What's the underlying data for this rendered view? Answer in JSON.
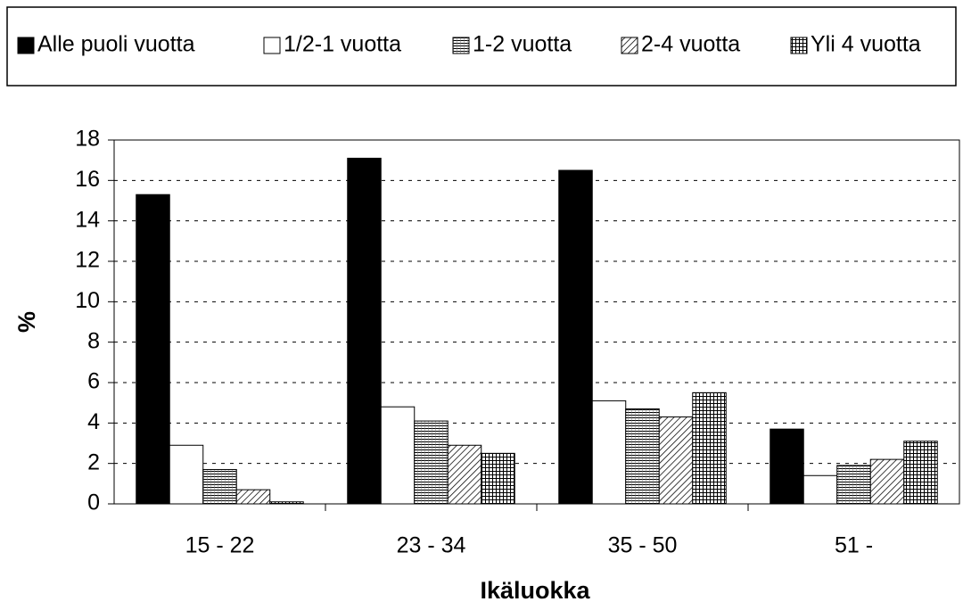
{
  "chart_data": {
    "type": "bar",
    "x_label": "Ikäluokka",
    "y_label": "%",
    "categories": [
      "15 - 22",
      "23 - 34",
      "35 - 50",
      "51 -"
    ],
    "series": [
      {
        "name": "Alle puoli vuotta",
        "color": "#000000",
        "pattern": "solid",
        "values": [
          15.3,
          17.1,
          16.5,
          3.7
        ]
      },
      {
        "name": "1/2-1 vuotta",
        "color": "#000000",
        "pattern": "none",
        "values": [
          2.9,
          4.8,
          5.1,
          1.4
        ]
      },
      {
        "name": "1-2 vuotta",
        "color": "#000000",
        "pattern": "horizontal",
        "values": [
          1.7,
          4.1,
          4.7,
          1.9
        ]
      },
      {
        "name": "2-4 vuotta",
        "color": "#000000",
        "pattern": "diagonal",
        "values": [
          0.7,
          2.9,
          4.3,
          2.2
        ]
      },
      {
        "name": "Yli 4 vuotta",
        "color": "#000000",
        "pattern": "grid",
        "values": [
          0.1,
          2.5,
          5.5,
          3.1
        ]
      }
    ],
    "ylim": [
      0,
      18
    ],
    "yticks": [
      0,
      2,
      4,
      6,
      8,
      10,
      12,
      14,
      16,
      18
    ],
    "grid": true,
    "legend": "top"
  }
}
